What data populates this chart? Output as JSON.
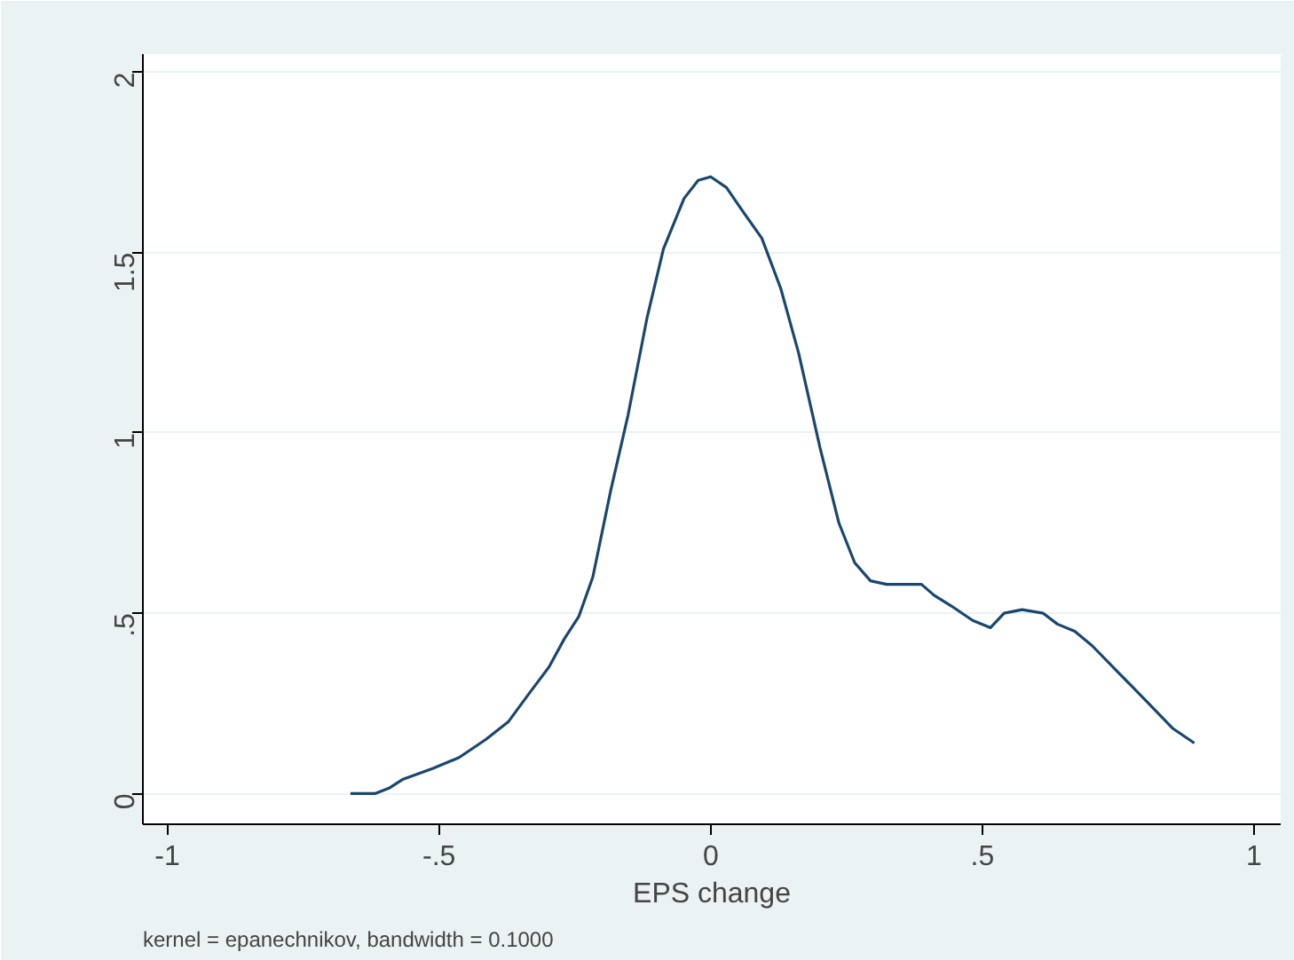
{
  "chart_data": {
    "type": "line",
    "xlabel": "EPS change",
    "annotations": [
      "kernel = epanechnikov, bandwidth = 0.1000"
    ],
    "xlim": [
      -1.045,
      1.049
    ],
    "ylim": [
      -0.085,
      2.05
    ],
    "xticks": [
      {
        "value": -1,
        "label": "-1"
      },
      {
        "value": -0.5,
        "label": "-.5"
      },
      0,
      {
        "value": 0.5,
        "label": ".5"
      },
      1
    ],
    "yticks": [
      0,
      {
        "value": 0.5,
        "label": ".5"
      },
      1,
      1.5,
      2
    ],
    "grid": "y",
    "series": [
      {
        "color": "#1a476f",
        "x": [
          -0.663,
          -0.618,
          -0.592,
          -0.566,
          -0.511,
          -0.463,
          -0.414,
          -0.372,
          -0.333,
          -0.298,
          -0.269,
          -0.243,
          -0.217,
          -0.184,
          -0.152,
          -0.117,
          -0.087,
          -0.049,
          -0.023,
          0,
          0.029,
          0.061,
          0.094,
          0.129,
          0.162,
          0.201,
          0.236,
          0.265,
          0.294,
          0.324,
          0.388,
          0.411,
          0.443,
          0.482,
          0.515,
          0.54,
          0.573,
          0.612,
          0.638,
          0.67,
          0.702,
          0.754,
          0.806,
          0.851,
          0.89
        ],
        "values": [
          0,
          0,
          0.015,
          0.04,
          0.07,
          0.1,
          0.15,
          0.2,
          0.28,
          0.35,
          0.43,
          0.49,
          0.6,
          0.84,
          1.05,
          1.32,
          1.51,
          1.65,
          1.7,
          1.71,
          1.68,
          1.61,
          1.54,
          1.4,
          1.22,
          0.96,
          0.75,
          0.64,
          0.59,
          0.58,
          0.58,
          0.55,
          0.52,
          0.48,
          0.46,
          0.5,
          0.51,
          0.5,
          0.47,
          0.45,
          0.41,
          0.33,
          0.25,
          0.18,
          0.14
        ]
      }
    ]
  }
}
